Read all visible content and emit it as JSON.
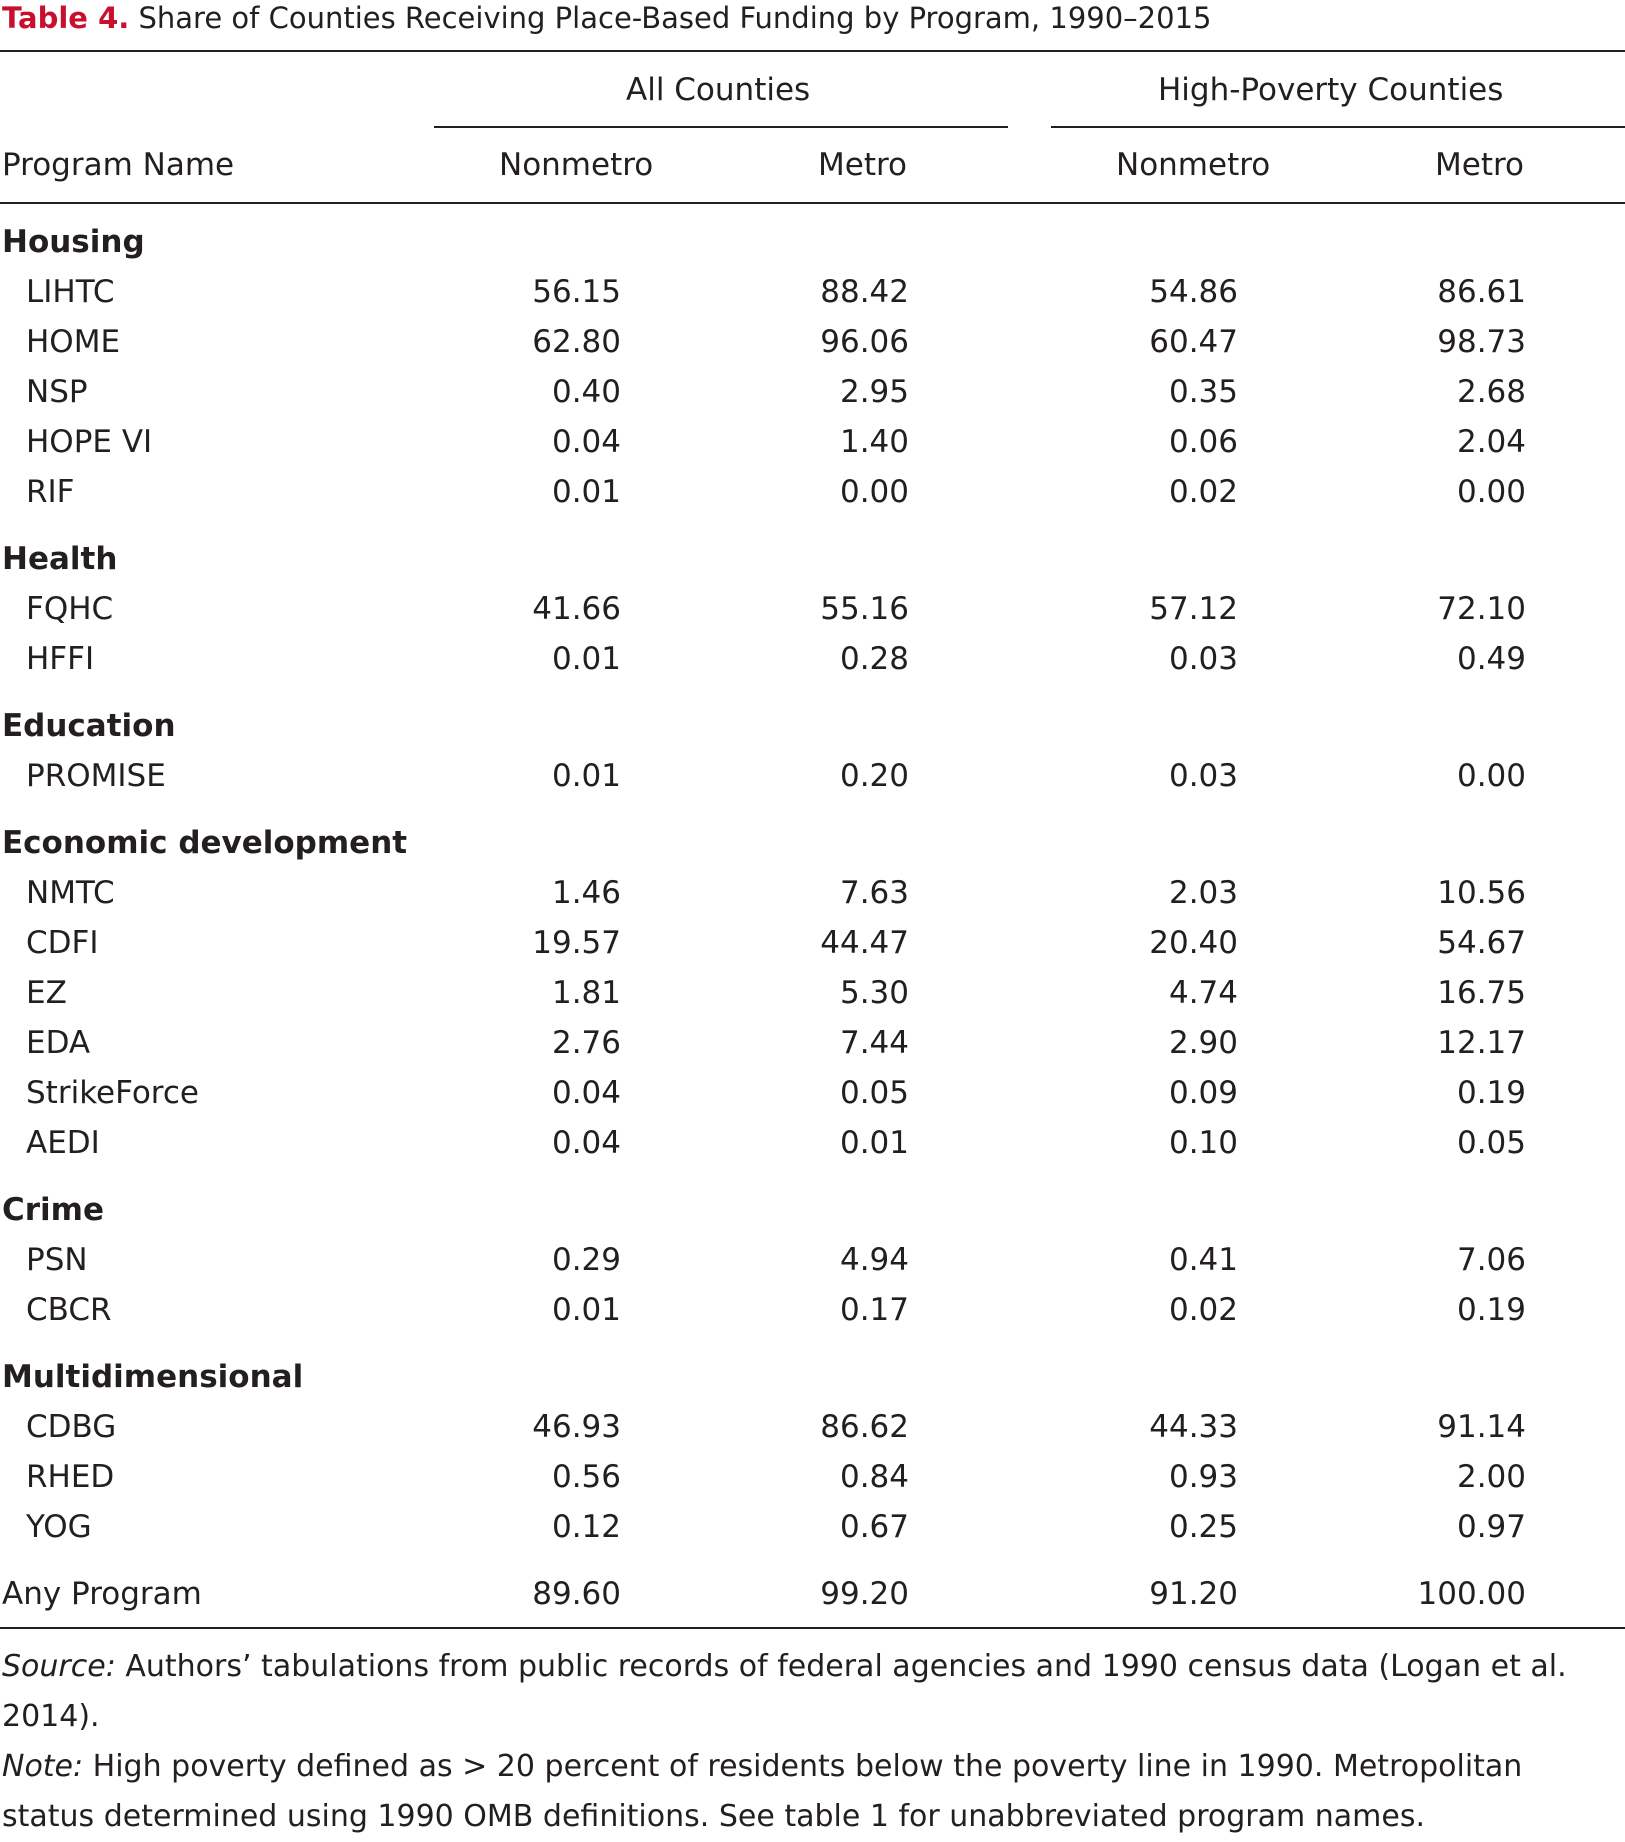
{
  "caption": {
    "label": "Table 4.",
    "title": "Share of Counties Receiving Place-Based Funding by Program, 1990–2015"
  },
  "colors": {
    "label_red": "#c8102e",
    "text": "#231f20"
  },
  "headers": {
    "group_all": "All Counties",
    "group_high": "High-Poverty Counties",
    "program_name": "Program Name",
    "cols": [
      "Nonmetro",
      "Metro",
      "Nonmetro",
      "Metro"
    ]
  },
  "groups": [
    {
      "name": "Housing",
      "rows": [
        {
          "program": "LIHTC",
          "values": [
            "56.15",
            "88.42",
            "54.86",
            "86.61"
          ]
        },
        {
          "program": "HOME",
          "values": [
            "62.80",
            "96.06",
            "60.47",
            "98.73"
          ]
        },
        {
          "program": "NSP",
          "values": [
            "0.40",
            "2.95",
            "0.35",
            "2.68"
          ]
        },
        {
          "program": "HOPE VI",
          "values": [
            "0.04",
            "1.40",
            "0.06",
            "2.04"
          ]
        },
        {
          "program": "RIF",
          "values": [
            "0.01",
            "0.00",
            "0.02",
            "0.00"
          ]
        }
      ]
    },
    {
      "name": "Health",
      "rows": [
        {
          "program": "FQHC",
          "values": [
            "41.66",
            "55.16",
            "57.12",
            "72.10"
          ]
        },
        {
          "program": "HFFI",
          "values": [
            "0.01",
            "0.28",
            "0.03",
            "0.49"
          ]
        }
      ]
    },
    {
      "name": "Education",
      "rows": [
        {
          "program": "PROMISE",
          "values": [
            "0.01",
            "0.20",
            "0.03",
            "0.00"
          ]
        }
      ]
    },
    {
      "name": "Economic development",
      "rows": [
        {
          "program": "NMTC",
          "values": [
            "1.46",
            "7.63",
            "2.03",
            "10.56"
          ]
        },
        {
          "program": "CDFI",
          "values": [
            "19.57",
            "44.47",
            "20.40",
            "54.67"
          ]
        },
        {
          "program": "EZ",
          "values": [
            "1.81",
            "5.30",
            "4.74",
            "16.75"
          ]
        },
        {
          "program": "EDA",
          "values": [
            "2.76",
            "7.44",
            "2.90",
            "12.17"
          ]
        },
        {
          "program": "StrikeForce",
          "values": [
            "0.04",
            "0.05",
            "0.09",
            "0.19"
          ]
        },
        {
          "program": "AEDI",
          "values": [
            "0.04",
            "0.01",
            "0.10",
            "0.05"
          ]
        }
      ]
    },
    {
      "name": "Crime",
      "rows": [
        {
          "program": "PSN",
          "values": [
            "0.29",
            "4.94",
            "0.41",
            "7.06"
          ]
        },
        {
          "program": "CBCR",
          "values": [
            "0.01",
            "0.17",
            "0.02",
            "0.19"
          ]
        }
      ]
    },
    {
      "name": "Multidimensional",
      "rows": [
        {
          "program": "CDBG",
          "values": [
            "46.93",
            "86.62",
            "44.33",
            "91.14"
          ]
        },
        {
          "program": "RHED",
          "values": [
            "0.56",
            "0.84",
            "0.93",
            "2.00"
          ]
        },
        {
          "program": "YOG",
          "values": [
            "0.12",
            "0.67",
            "0.25",
            "0.97"
          ]
        }
      ]
    }
  ],
  "total": {
    "program": "Any Program",
    "values": [
      "89.60",
      "99.20",
      "91.20",
      "100.00"
    ]
  },
  "footnotes": {
    "source_label": "Source:",
    "source_text": " Authors’ tabulations from public records of federal agencies and 1990 census data (Logan et al. 2014).",
    "note_label": "Note:",
    "note_text": " High poverty defined as > 20 percent of residents below the poverty line in 1990. Metropolitan status determined using 1990 OMB definitions. See table 1 for unabbreviated program names."
  }
}
